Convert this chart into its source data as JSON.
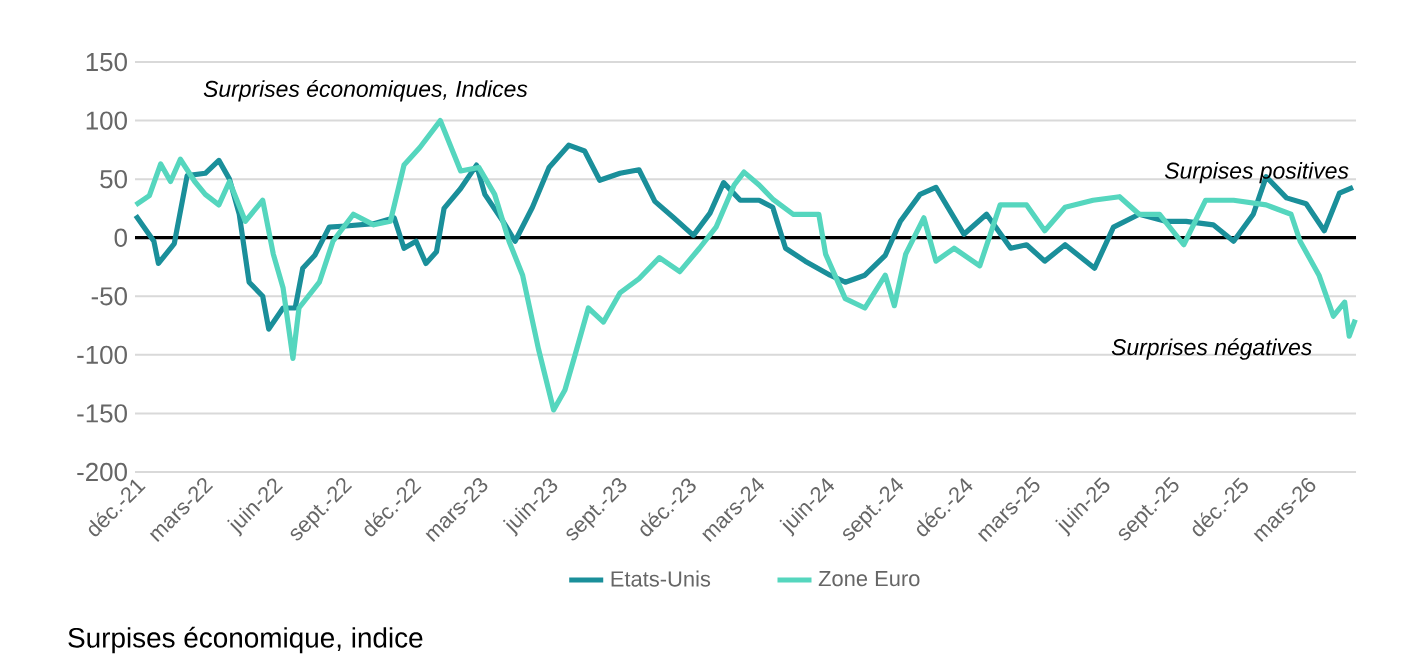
{
  "chart_data": {
    "type": "line",
    "title": "Surpises économique, indice",
    "annotations": [
      "Surprises économiques, Indices",
      "Surpises positives",
      "Surprises négatives"
    ],
    "series": [
      {
        "name": "Etats-Unis",
        "color": "#1a8f9a",
        "x": [
          "2021-12-02",
          "2021-12-26",
          "2022-01-01",
          "2022-01-22",
          "2022-02-08",
          "2022-03-04",
          "2022-03-22",
          "2022-04-05",
          "2022-04-18",
          "2022-05-01",
          "2022-05-19",
          "2022-05-27",
          "2022-06-15",
          "2022-07-01",
          "2022-07-11",
          "2022-07-27",
          "2022-08-15",
          "2022-09-06",
          "2022-10-13",
          "2022-11-09",
          "2022-11-22",
          "2022-12-08",
          "2022-12-21",
          "2023-01-04",
          "2023-01-14",
          "2023-02-05",
          "2023-02-26",
          "2023-03-09",
          "2023-04-02",
          "2023-04-18",
          "2023-05-11",
          "2023-06-02",
          "2023-06-28",
          "2023-07-19",
          "2023-08-08",
          "2023-09-04",
          "2023-09-29",
          "2023-10-20",
          "2023-11-14",
          "2023-12-10",
          "2024-01-01",
          "2024-01-19",
          "2024-02-10",
          "2024-03-06",
          "2024-03-24",
          "2024-04-10",
          "2024-05-06",
          "2024-06-08",
          "2024-06-28",
          "2024-07-24",
          "2024-08-20",
          "2024-09-09",
          "2024-10-05",
          "2024-10-26",
          "2024-12-02",
          "2025-01-01",
          "2025-02-02",
          "2025-02-23",
          "2025-03-19",
          "2025-04-15",
          "2025-05-24",
          "2025-06-18",
          "2025-07-22",
          "2025-08-26",
          "2025-09-22",
          "2025-10-28",
          "2025-11-24",
          "2025-12-20",
          "2026-01-06",
          "2026-02-02",
          "2026-02-28",
          "2026-03-24",
          "2026-04-13",
          "2026-05-01"
        ],
        "values": [
          19,
          -3,
          -22,
          -5,
          53,
          55,
          66,
          50,
          20,
          -38,
          -50,
          -78,
          -60,
          -60,
          -26,
          -15,
          9,
          10,
          12,
          17,
          -9,
          -3,
          -22,
          -12,
          25,
          42,
          62,
          37,
          14,
          -3,
          26,
          60,
          79,
          74,
          49,
          55,
          58,
          31,
          17,
          2,
          21,
          47,
          32,
          32,
          26,
          -9,
          -20,
          -32,
          -38,
          -32,
          -15,
          14,
          37,
          43,
          3,
          20,
          -9,
          -6,
          -20,
          -6,
          -26,
          9,
          20,
          14,
          14,
          11,
          -3,
          20,
          52,
          34,
          29,
          6,
          38,
          43
        ]
      },
      {
        "name": "Zone Euro",
        "color": "#55d6be",
        "x": [
          "2021-12-02",
          "2021-12-20",
          "2022-01-04",
          "2022-01-17",
          "2022-01-30",
          "2022-02-18",
          "2022-03-04",
          "2022-03-22",
          "2022-04-05",
          "2022-04-26",
          "2022-05-19",
          "2022-06-02",
          "2022-06-15",
          "2022-06-28",
          "2022-07-06",
          "2022-08-02",
          "2022-08-20",
          "2022-09-16",
          "2022-10-13",
          "2022-11-04",
          "2022-11-22",
          "2022-12-13",
          "2023-01-09",
          "2023-02-05",
          "2023-03-01",
          "2023-03-22",
          "2023-04-10",
          "2023-04-28",
          "2023-05-19",
          "2023-06-08",
          "2023-06-23",
          "2023-07-06",
          "2023-07-24",
          "2023-08-13",
          "2023-09-04",
          "2023-09-29",
          "2023-10-26",
          "2023-11-22",
          "2023-12-18",
          "2024-01-09",
          "2024-02-02",
          "2024-02-15",
          "2024-03-06",
          "2024-03-24",
          "2024-04-20",
          "2024-05-24",
          "2024-06-02",
          "2024-06-28",
          "2024-07-24",
          "2024-08-20",
          "2024-09-01",
          "2024-09-16",
          "2024-10-10",
          "2024-10-26",
          "2024-11-19",
          "2024-12-23",
          "2025-01-19",
          "2025-02-23",
          "2025-03-19",
          "2025-04-15",
          "2025-05-22",
          "2025-06-26",
          "2025-07-22",
          "2025-08-18",
          "2025-09-19",
          "2025-10-18",
          "2025-11-24",
          "2026-01-06",
          "2026-02-08",
          "2026-02-20",
          "2026-03-17",
          "2026-04-05",
          "2026-04-20",
          "2026-04-26",
          "2026-05-04"
        ],
        "values": [
          28,
          36,
          63,
          48,
          67,
          48,
          37,
          28,
          48,
          14,
          32,
          -14,
          -43,
          -103,
          -60,
          -38,
          -3,
          20,
          11,
          14,
          62,
          77,
          100,
          57,
          60,
          37,
          -3,
          -32,
          -95,
          -147,
          -130,
          -101,
          -60,
          -72,
          -47,
          -35,
          -17,
          -29,
          -9,
          9,
          45,
          56,
          45,
          33,
          20,
          20,
          -14,
          -52,
          -60,
          -32,
          -58,
          -14,
          17,
          -20,
          -9,
          -24,
          28,
          28,
          6,
          26,
          32,
          35,
          20,
          20,
          -6,
          32,
          32,
          28,
          20,
          -3,
          -32,
          -67,
          -55,
          -84,
          -70
        ]
      }
    ],
    "xlim": [
      "2021-12-01",
      "2026-05-05"
    ],
    "xticks": [
      {
        "value": "2021-12-01",
        "label": "déc.-21"
      },
      {
        "value": "2022-03-01",
        "label": "mars-22"
      },
      {
        "value": "2022-06-01",
        "label": "juin-22"
      },
      {
        "value": "2022-09-01",
        "label": "sept.-22"
      },
      {
        "value": "2022-12-01",
        "label": "déc.-22"
      },
      {
        "value": "2023-03-01",
        "label": "mars-23"
      },
      {
        "value": "2023-06-01",
        "label": "juin-23"
      },
      {
        "value": "2023-09-01",
        "label": "sept.-23"
      },
      {
        "value": "2023-12-01",
        "label": "déc.-23"
      },
      {
        "value": "2024-03-01",
        "label": "mars-24"
      },
      {
        "value": "2024-06-01",
        "label": "juin-24"
      },
      {
        "value": "2024-09-01",
        "label": "sept.-24"
      },
      {
        "value": "2024-12-01",
        "label": "déc.-24"
      },
      {
        "value": "2025-03-01",
        "label": "mars-25"
      },
      {
        "value": "2025-06-01",
        "label": "juin-25"
      },
      {
        "value": "2025-09-01",
        "label": "sept.-25"
      },
      {
        "value": "2025-12-01",
        "label": "déc.-25"
      },
      {
        "value": "2026-03-01",
        "label": "mars-26"
      }
    ],
    "ylim": [
      -200,
      150
    ],
    "yticks": [
      -200,
      -150,
      -100,
      -50,
      0,
      50,
      100,
      150
    ],
    "ref_lines": [
      {
        "axis": "y",
        "value": 0,
        "color": "#000000"
      }
    ],
    "grid": "y",
    "legend": "bottom",
    "marker": "none",
    "line_style": "solid"
  }
}
